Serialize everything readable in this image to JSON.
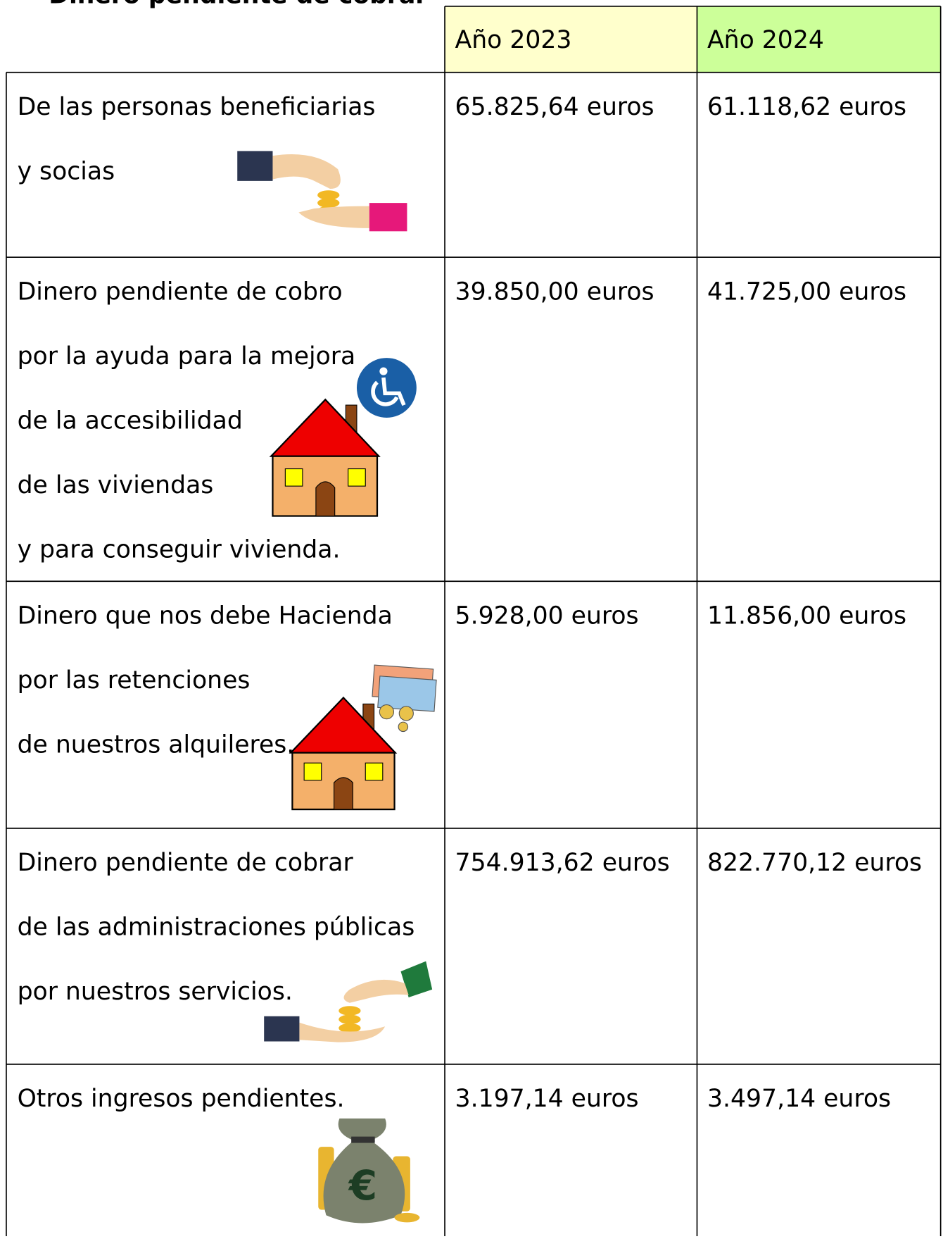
{
  "title": "Dinero pendiente de cobrar",
  "table": {
    "headers": [
      "Año 2023",
      "Año 2024"
    ],
    "rows": [
      {
        "concept": [
          "De las personas beneficiarias",
          "y socias"
        ],
        "values": [
          "65.825,64 euros",
          "61.118,62 euros"
        ]
      },
      {
        "concept": [
          "Dinero pendiente de cobro",
          "por la ayuda para la mejora",
          "de la accesibilidad",
          "de las viviendas",
          "y para conseguir vivienda."
        ],
        "values": [
          "39.850,00 euros",
          "41.725,00 euros"
        ]
      },
      {
        "concept": [
          "Dinero que nos debe Hacienda",
          "por las retenciones",
          "de nuestros alquileres."
        ],
        "values": [
          "5.928,00 euros",
          "11.856,00 euros"
        ]
      },
      {
        "concept": [
          "Dinero pendiente de cobrar",
          "de las administraciones públicas",
          "por nuestros servicios."
        ],
        "values": [
          "754.913,62 euros",
          "822.770,12 euros"
        ]
      },
      {
        "concept": [
          "Otros ingresos pendientes."
        ],
        "values": [
          "3.197,14 euros",
          "3.497,14 euros"
        ]
      }
    ]
  }
}
